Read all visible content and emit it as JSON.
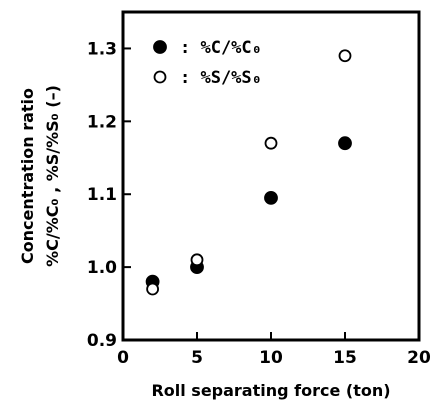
{
  "chart_data": {
    "type": "scatter",
    "title": "",
    "xlabel": "Roll separating force  (ton)",
    "ylabel": "Concentration ratio",
    "ylabel2": "%C/%C₀ , %S/%S₀ (–)",
    "xlim": [
      0,
      20
    ],
    "ylim": [
      0.9,
      1.35
    ],
    "xticks": [
      "0",
      "5",
      "10",
      "15",
      "20"
    ],
    "yticks": [
      "0.9",
      "1.0",
      "1.1",
      "1.2",
      "1.3"
    ],
    "grid": false,
    "legend_position": "top-left",
    "series": [
      {
        "name": "%C/%C₀",
        "marker": "filled-circle",
        "color": "#000000",
        "x": [
          2,
          5,
          10,
          15
        ],
        "y": [
          0.98,
          1.0,
          1.095,
          1.17
        ]
      },
      {
        "name": "%S/%S₀",
        "marker": "open-circle",
        "color": "#000000",
        "x": [
          2,
          5,
          10,
          15
        ],
        "y": [
          0.97,
          1.01,
          1.17,
          1.29
        ]
      }
    ]
  }
}
